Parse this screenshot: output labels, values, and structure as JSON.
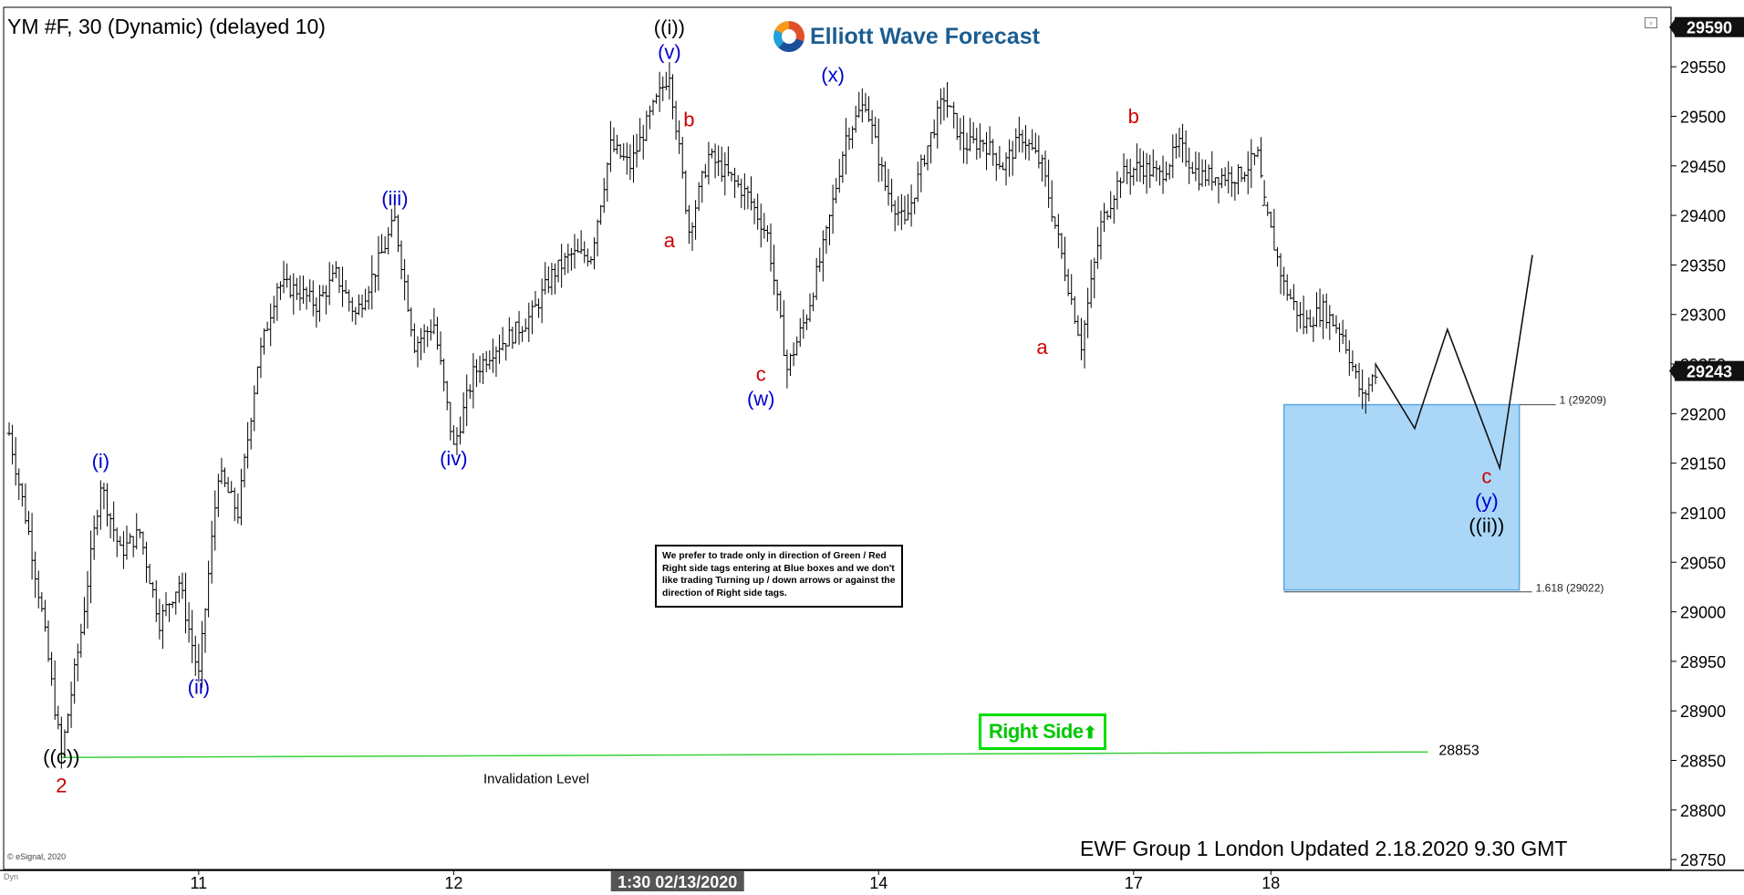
{
  "header": {
    "title": "YM #F, 30 (Dynamic) (delayed 10)",
    "logo_text": "Elliott Wave Forecast"
  },
  "footer": {
    "update_text": "EWF Group 1 London Updated 2.18.2020 9.30 GMT",
    "copyright": "© eSignal, 2020",
    "dyn_label": "Dyn"
  },
  "note": {
    "text": "We prefer to trade only in direction of Green / Red Right side tags entering at Blue boxes and we don't like trading Turning up / down arrows or against the direction of Right side tags."
  },
  "right_side_tag": {
    "label": "Right Side"
  },
  "colors": {
    "blue_box": "#aad7f7",
    "blue_box_border": "#5aa9e0",
    "invalidation_line": "#3ad13a",
    "label_blue": "#0000cc",
    "label_red": "#cc0000",
    "label_black": "#000000",
    "tag_green": "#00e000",
    "bars": "#000000"
  },
  "icons": {
    "right_side_arrow": "up-arrow-icon",
    "logo": "elliott-wave-logo-icon"
  },
  "chart_data": {
    "type": "bar",
    "instrument": "YM #F",
    "interval": "30",
    "ylim": [
      28740,
      29610
    ],
    "yticks": [
      28750,
      28800,
      28850,
      28900,
      28950,
      29000,
      29050,
      29100,
      29150,
      29200,
      29250,
      29300,
      29350,
      29400,
      29450,
      29500,
      29550
    ],
    "x_tick_labels": [
      "11",
      "12",
      "1:30 02/13/2020",
      "14",
      "17",
      "18"
    ],
    "last_price_marker": "29590",
    "current_price": "29243",
    "ohlc_path": [
      {
        "x": 0,
        "y": 29180
      },
      {
        "x": 3,
        "y": 29080
      },
      {
        "x": 5,
        "y": 29000
      },
      {
        "x": 8,
        "y": 28855
      },
      {
        "x": 11,
        "y": 28980
      },
      {
        "x": 14,
        "y": 29130
      },
      {
        "x": 17,
        "y": 29060
      },
      {
        "x": 20,
        "y": 29080
      },
      {
        "x": 23,
        "y": 28990
      },
      {
        "x": 26,
        "y": 29030
      },
      {
        "x": 29,
        "y": 28935
      },
      {
        "x": 32,
        "y": 29140
      },
      {
        "x": 35,
        "y": 29100
      },
      {
        "x": 38,
        "y": 29250
      },
      {
        "x": 41,
        "y": 29330
      },
      {
        "x": 44,
        "y": 29325
      },
      {
        "x": 47,
        "y": 29310
      },
      {
        "x": 50,
        "y": 29340
      },
      {
        "x": 53,
        "y": 29300
      },
      {
        "x": 56,
        "y": 29345
      },
      {
        "x": 59,
        "y": 29395
      },
      {
        "x": 62,
        "y": 29270
      },
      {
        "x": 65,
        "y": 29290
      },
      {
        "x": 68,
        "y": 29165
      },
      {
        "x": 71,
        "y": 29240
      },
      {
        "x": 74,
        "y": 29265
      },
      {
        "x": 77,
        "y": 29280
      },
      {
        "x": 80,
        "y": 29300
      },
      {
        "x": 83,
        "y": 29340
      },
      {
        "x": 86,
        "y": 29360
      },
      {
        "x": 89,
        "y": 29360
      },
      {
        "x": 92,
        "y": 29470
      },
      {
        "x": 95,
        "y": 29450
      },
      {
        "x": 98,
        "y": 29500
      },
      {
        "x": 101,
        "y": 29545
      },
      {
        "x": 104,
        "y": 29385
      },
      {
        "x": 107,
        "y": 29460
      },
      {
        "x": 110,
        "y": 29440
      },
      {
        "x": 113,
        "y": 29420
      },
      {
        "x": 116,
        "y": 29380
      },
      {
        "x": 119,
        "y": 29245
      },
      {
        "x": 122,
        "y": 29300
      },
      {
        "x": 125,
        "y": 29380
      },
      {
        "x": 128,
        "y": 29480
      },
      {
        "x": 131,
        "y": 29515
      },
      {
        "x": 134,
        "y": 29430
      },
      {
        "x": 137,
        "y": 29390
      },
      {
        "x": 140,
        "y": 29460
      },
      {
        "x": 143,
        "y": 29520
      },
      {
        "x": 146,
        "y": 29470
      },
      {
        "x": 149,
        "y": 29475
      },
      {
        "x": 152,
        "y": 29450
      },
      {
        "x": 155,
        "y": 29480
      },
      {
        "x": 158,
        "y": 29450
      },
      {
        "x": 161,
        "y": 29360
      },
      {
        "x": 164,
        "y": 29270
      },
      {
        "x": 167,
        "y": 29390
      },
      {
        "x": 170,
        "y": 29440
      },
      {
        "x": 173,
        "y": 29450
      },
      {
        "x": 176,
        "y": 29440
      },
      {
        "x": 179,
        "y": 29470
      },
      {
        "x": 182,
        "y": 29440
      },
      {
        "x": 185,
        "y": 29440
      },
      {
        "x": 188,
        "y": 29440
      },
      {
        "x": 191,
        "y": 29460
      },
      {
        "x": 192,
        "y": 29410
      },
      {
        "x": 195,
        "y": 29330
      },
      {
        "x": 198,
        "y": 29290
      },
      {
        "x": 201,
        "y": 29305
      },
      {
        "x": 204,
        "y": 29280
      },
      {
        "x": 207,
        "y": 29215
      },
      {
        "x": 209,
        "y": 29243
      }
    ],
    "bars_x_range": [
      0,
      209
    ],
    "projection_path": [
      {
        "x": 209,
        "y": 29250
      },
      {
        "x": 215,
        "y": 29185
      },
      {
        "x": 220,
        "y": 29285
      },
      {
        "x": 228,
        "y": 29145
      },
      {
        "x": 233,
        "y": 29360
      }
    ],
    "fib_box": {
      "x_start": 195,
      "x_end": 231,
      "y_top": 29209,
      "y_bottom": 29022,
      "top_label": "1 (29209)",
      "bottom_label": "1.618 (29022)"
    },
    "invalidation": {
      "x_start": 8,
      "x_end": 217,
      "y": 28853,
      "value_label": "28853",
      "text": "Invalidation Level"
    },
    "wave_labels": [
      {
        "text": "((c))",
        "x": 8,
        "y": 28847,
        "color": "black"
      },
      {
        "text": "2",
        "x": 8,
        "y": 28818,
        "color": "red"
      },
      {
        "text": "(i)",
        "x": 14,
        "y": 29145,
        "color": "blue"
      },
      {
        "text": "(ii)",
        "x": 29,
        "y": 28917,
        "color": "blue"
      },
      {
        "text": "(iii)",
        "x": 59,
        "y": 29410,
        "color": "blue"
      },
      {
        "text": "(iv)",
        "x": 68,
        "y": 29148,
        "color": "blue"
      },
      {
        "text": "((i))",
        "x": 101,
        "y": 29583,
        "color": "black"
      },
      {
        "text": "(v)",
        "x": 101,
        "y": 29558,
        "color": "blue"
      },
      {
        "text": "a",
        "x": 101,
        "y": 29368,
        "color": "red"
      },
      {
        "text": "b",
        "x": 104,
        "y": 29490,
        "color": "red"
      },
      {
        "text": "c",
        "x": 115,
        "y": 29233,
        "color": "red"
      },
      {
        "text": "(w)",
        "x": 115,
        "y": 29208,
        "color": "blue"
      },
      {
        "text": "(x)",
        "x": 126,
        "y": 29535,
        "color": "blue"
      },
      {
        "text": "a",
        "x": 158,
        "y": 29260,
        "color": "red"
      },
      {
        "text": "b",
        "x": 172,
        "y": 29493,
        "color": "red"
      },
      {
        "text": "c",
        "x": 226,
        "y": 29130,
        "color": "red"
      },
      {
        "text": "(y)",
        "x": 226,
        "y": 29105,
        "color": "blue"
      },
      {
        "text": "((ii))",
        "x": 226,
        "y": 29080,
        "color": "black"
      }
    ]
  }
}
